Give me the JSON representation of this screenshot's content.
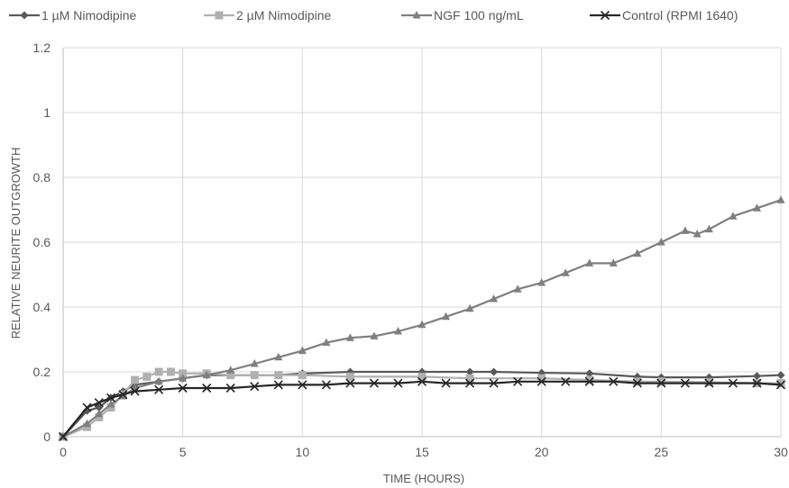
{
  "chart_data": {
    "type": "line",
    "title": "",
    "xlabel": "TIME (HOURS)",
    "ylabel": "RELATIVE NEURITE OUTGROWTH",
    "xlim": [
      0,
      30
    ],
    "ylim": [
      0,
      1.2
    ],
    "x_ticks": [
      "0",
      "5",
      "10",
      "15",
      "20",
      "25",
      "30"
    ],
    "y_ticks": [
      "0",
      "0.2",
      "0.4",
      "0.6",
      "0.8",
      "1",
      "1.2"
    ],
    "grid": "vertical and horizontal major gridlines",
    "legend_position": "top",
    "series": [
      {
        "name": "1 µM Nimodipine",
        "color": "#595959",
        "marker": "diamond",
        "points": [
          [
            0,
            0
          ],
          [
            1,
            0.08
          ],
          [
            1.5,
            0.09
          ],
          [
            2,
            0.12
          ],
          [
            2.5,
            0.14
          ],
          [
            3,
            0.16
          ],
          [
            4,
            0.17
          ],
          [
            5,
            0.18
          ],
          [
            6,
            0.19
          ],
          [
            7,
            0.19
          ],
          [
            8,
            0.19
          ],
          [
            9,
            0.19
          ],
          [
            10,
            0.195
          ],
          [
            12,
            0.2
          ],
          [
            15,
            0.2
          ],
          [
            17,
            0.2
          ],
          [
            18,
            0.2
          ],
          [
            20,
            0.197
          ],
          [
            22,
            0.195
          ],
          [
            24,
            0.185
          ],
          [
            25,
            0.183
          ],
          [
            27,
            0.183
          ],
          [
            29,
            0.187
          ],
          [
            30,
            0.19
          ]
        ]
      },
      {
        "name": "2 µM Nimodipine",
        "color": "#b0b0b0",
        "marker": "square",
        "points": [
          [
            0,
            0
          ],
          [
            1,
            0.03
          ],
          [
            1.5,
            0.06
          ],
          [
            2,
            0.09
          ],
          [
            2.5,
            0.13
          ],
          [
            3,
            0.175
          ],
          [
            3.5,
            0.185
          ],
          [
            4,
            0.2
          ],
          [
            4.5,
            0.2
          ],
          [
            5,
            0.195
          ],
          [
            6,
            0.195
          ],
          [
            7,
            0.19
          ],
          [
            8,
            0.19
          ],
          [
            9,
            0.19
          ],
          [
            10,
            0.19
          ],
          [
            12,
            0.185
          ],
          [
            15,
            0.185
          ],
          [
            17,
            0.18
          ],
          [
            20,
            0.18
          ],
          [
            22,
            0.175
          ],
          [
            24,
            0.17
          ],
          [
            25,
            0.17
          ],
          [
            27,
            0.168
          ],
          [
            29,
            0.165
          ],
          [
            30,
            0.165
          ]
        ]
      },
      {
        "name": "NGF 100 ng/mL",
        "color": "#7f7f7f",
        "marker": "triangle",
        "points": [
          [
            0,
            0
          ],
          [
            1,
            0.04
          ],
          [
            1.5,
            0.07
          ],
          [
            2,
            0.1
          ],
          [
            2.5,
            0.125
          ],
          [
            3,
            0.15
          ],
          [
            4,
            0.17
          ],
          [
            5,
            0.18
          ],
          [
            6,
            0.19
          ],
          [
            7,
            0.205
          ],
          [
            8,
            0.225
          ],
          [
            9,
            0.245
          ],
          [
            10,
            0.265
          ],
          [
            11,
            0.29
          ],
          [
            12,
            0.305
          ],
          [
            13,
            0.31
          ],
          [
            14,
            0.325
          ],
          [
            15,
            0.345
          ],
          [
            16,
            0.37
          ],
          [
            17,
            0.395
          ],
          [
            18,
            0.425
          ],
          [
            19,
            0.455
          ],
          [
            20,
            0.475
          ],
          [
            21,
            0.505
          ],
          [
            22,
            0.535
          ],
          [
            23,
            0.535
          ],
          [
            24,
            0.565
          ],
          [
            25,
            0.6
          ],
          [
            26,
            0.635
          ],
          [
            26.5,
            0.625
          ],
          [
            27,
            0.64
          ],
          [
            28,
            0.68
          ],
          [
            29,
            0.705
          ],
          [
            30,
            0.73
          ]
        ]
      },
      {
        "name": "Control (RPMI 1640)",
        "color": "#262626",
        "marker": "x",
        "points": [
          [
            0,
            0
          ],
          [
            1,
            0.09
          ],
          [
            1.5,
            0.105
          ],
          [
            2,
            0.12
          ],
          [
            2.5,
            0.13
          ],
          [
            3,
            0.14
          ],
          [
            4,
            0.145
          ],
          [
            5,
            0.15
          ],
          [
            6,
            0.15
          ],
          [
            7,
            0.15
          ],
          [
            8,
            0.155
          ],
          [
            9,
            0.16
          ],
          [
            10,
            0.16
          ],
          [
            11,
            0.16
          ],
          [
            12,
            0.165
          ],
          [
            13,
            0.165
          ],
          [
            14,
            0.165
          ],
          [
            15,
            0.17
          ],
          [
            16,
            0.165
          ],
          [
            17,
            0.165
          ],
          [
            18,
            0.165
          ],
          [
            19,
            0.17
          ],
          [
            20,
            0.17
          ],
          [
            21,
            0.17
          ],
          [
            22,
            0.17
          ],
          [
            23,
            0.17
          ],
          [
            24,
            0.165
          ],
          [
            25,
            0.165
          ],
          [
            26,
            0.165
          ],
          [
            27,
            0.165
          ],
          [
            28,
            0.165
          ],
          [
            29,
            0.165
          ],
          [
            30,
            0.16
          ]
        ]
      }
    ]
  }
}
